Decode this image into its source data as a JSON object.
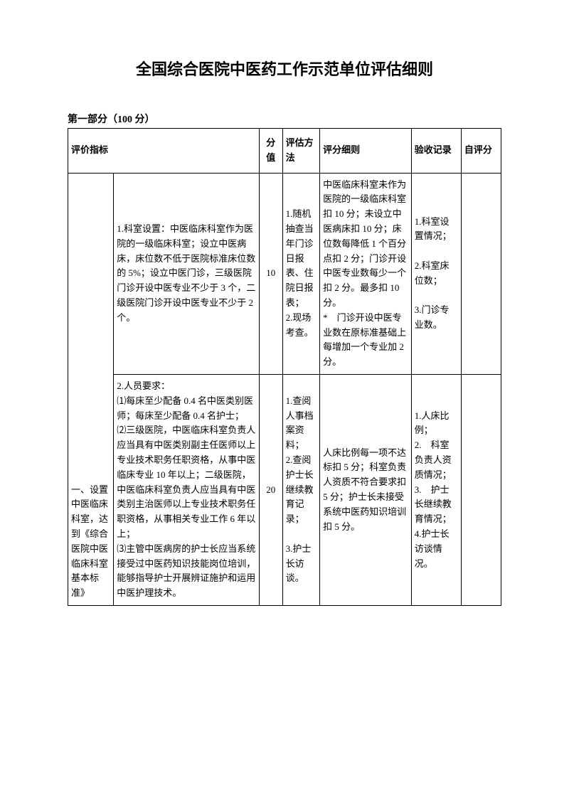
{
  "title": "全国综合医院中医药工作示范单位评估细则",
  "section_label": "第一部分（100 分）",
  "headers": {
    "indicator": "评价指标",
    "score": "分值",
    "method": "评估方法",
    "detail": "评分细则",
    "record": "验收记录",
    "self": "自评分"
  },
  "category": "一、设置中医临床科室，达到《综合医院中医临床科室基本标准》",
  "rows": [
    {
      "content": "1.科室设置：中医临床科室作为医院的一级临床科室；设立中医病床，床位数不低于医院标准床位数的 5%；设立中医门诊，三级医院门诊开设中医专业不少于 3 个，二级医院门诊开设中医专业不少于 2 个。",
      "score": "10",
      "method": "1.随机抽查当年门诊日报表、住院日报表；\n2.现场考查。",
      "detail": "中医临床科室未作为医院的一级临床科室扣 10 分；未设立中医病床扣 10 分；床位数每降低 1 个百分点扣 2 分；门诊开设中医专业数每少一个扣 2 分。最多扣 10 分。\n*　门诊开设中医专业数在原标准基础上每增加一个专业加 2 分。",
      "record": "1.科室设置情况；\n\n2.科室床位数；\n\n3.门诊专业数。"
    },
    {
      "content": "2.人员要求：\n⑴每床至少配备 0.4 名中医类别医师；每床至少配备 0.4 名护士；\n⑵三级医院，中医临床科室负责人应当具有中医类别副主任医师以上专业技术职务任职资格，从事中医临床专业 10 年以上；二级医院，中医临床科室负责人应当具有中医类别主治医师以上专业技术职务任职资格，从事相关专业工作 6 年以上；\n⑶主管中医病房的护士长应当系统接受过中医药知识技能岗位培训，能够指导护士开展辨证施护和运用中医护理技术。",
      "score": "20",
      "method": "1.查阅人事档案资料；\n2.查阅护士长继续教育记录；\n\n3.护士长访谈。",
      "detail": "人床比例每一项不达标扣 5 分；科室负责人资质不符合要求扣 5 分；护士长未接受系统中医药知识培训扣 5 分。",
      "record": "1.人床比例；\n2.　科室负责人资质情况；\n3.　护士长继续教育情况；\n4.护士长访谈情况。"
    }
  ]
}
